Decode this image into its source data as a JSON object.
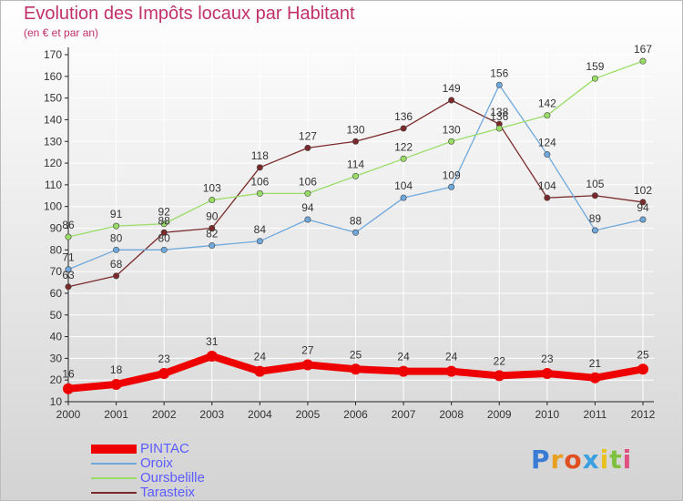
{
  "title": "Evolution des Impôts locaux par Habitant",
  "subtitle": "(en € et par an)",
  "logo": "Proxiti",
  "colors": {
    "background_top": "#ffffff",
    "background_bottom": "#d3d3d3",
    "title": "#c0306a",
    "legend_text": "#5b5bff",
    "axis": "#222222",
    "grid": "#ffffff",
    "label": "#333333"
  },
  "chart_data": {
    "type": "line",
    "title": "Evolution des Impôts locaux par Habitant",
    "subtitle": "(en € et par an)",
    "xlabel": "",
    "ylabel": "",
    "x": [
      "2000",
      "2001",
      "2002",
      "2003",
      "2004",
      "2005",
      "2006",
      "2007",
      "2008",
      "2009",
      "2010",
      "2011",
      "2012"
    ],
    "ylim": [
      10,
      170
    ],
    "yticks": [
      10,
      20,
      30,
      40,
      50,
      60,
      70,
      80,
      90,
      100,
      110,
      120,
      130,
      140,
      150,
      160,
      170
    ],
    "grid": true,
    "legend_position": "bottom-left",
    "series": [
      {
        "name": "PINTAC",
        "color": "#ee0000",
        "values": [
          16,
          18,
          23,
          31,
          24,
          27,
          25,
          24,
          24,
          22,
          23,
          21,
          25
        ]
      },
      {
        "name": "Oroix",
        "color": "#6fa8dc",
        "values": [
          71,
          80,
          80,
          82,
          84,
          94,
          88,
          104,
          109,
          156,
          124,
          89,
          94
        ]
      },
      {
        "name": "Oursbelille",
        "color": "#99dd66",
        "values": [
          86,
          91,
          92,
          103,
          106,
          106,
          114,
          122,
          130,
          136,
          142,
          159,
          167
        ]
      },
      {
        "name": "Tarasteix",
        "color": "#7a2a2a",
        "values": [
          63,
          68,
          88,
          90,
          118,
          127,
          130,
          136,
          149,
          138,
          104,
          105,
          102
        ]
      }
    ]
  }
}
